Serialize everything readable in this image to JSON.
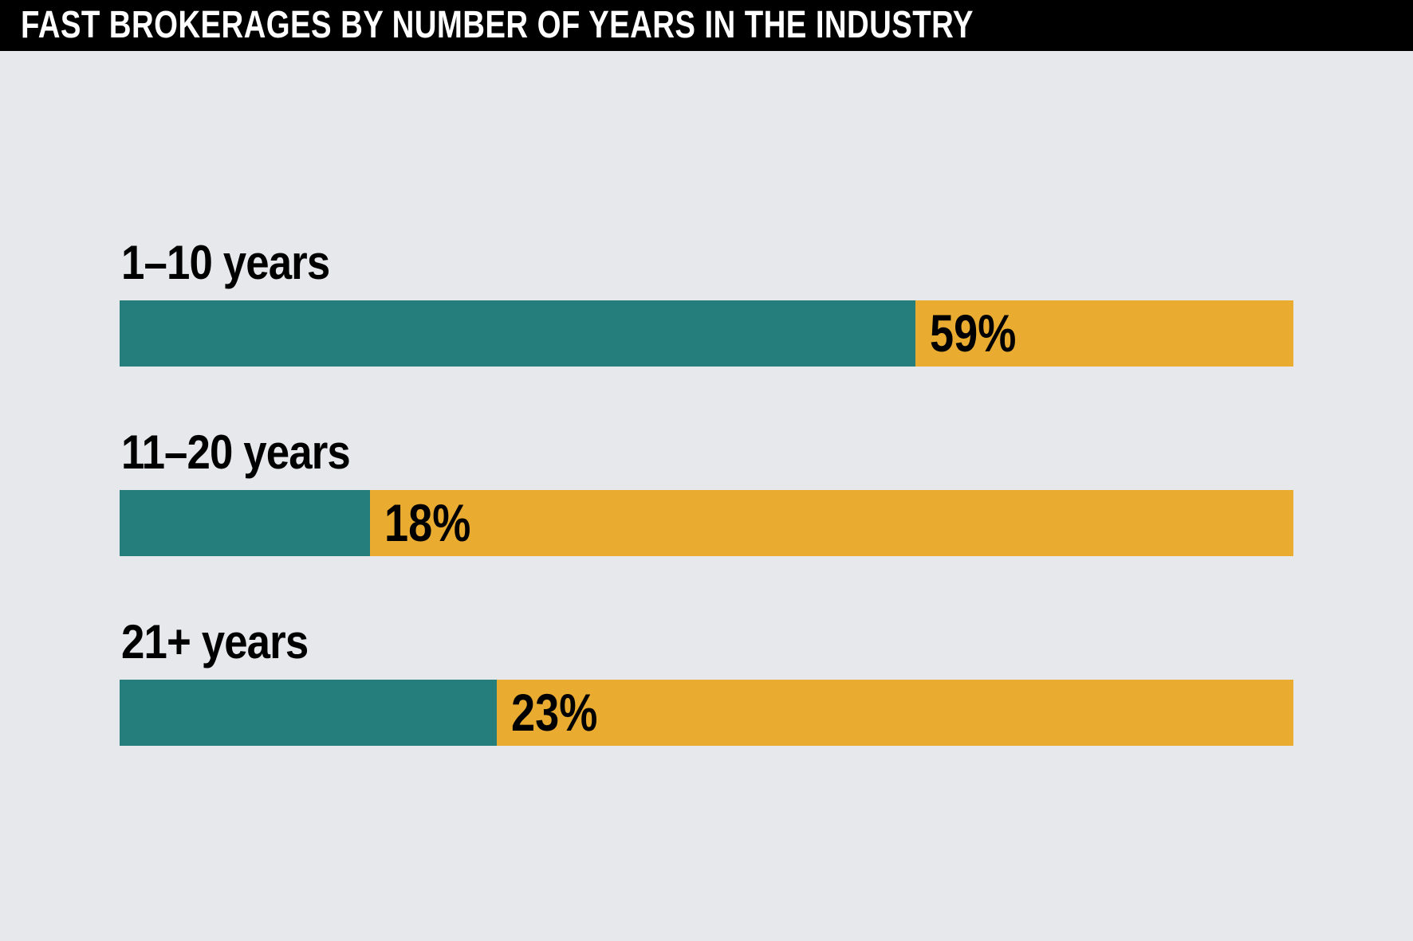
{
  "title": "FAST BROKERAGES BY NUMBER OF YEARS IN THE INDUSTRY",
  "colors": {
    "background": "#E7E8EC",
    "title_bg": "#000000",
    "title_text": "#FFFFFF",
    "label_text": "#000000",
    "teal": "#257E7C",
    "orange": "#E9AC31"
  },
  "chart_data": {
    "type": "bar",
    "orientation": "horizontal",
    "title": "FAST BROKERAGES BY NUMBER OF YEARS IN THE INDUSTRY",
    "categories": [
      "1–10 years",
      "11–20 years",
      "21+ years"
    ],
    "values": [
      59,
      18,
      23
    ],
    "value_labels": [
      "59%",
      "18%",
      "23%"
    ],
    "value_unit": "%",
    "series_colors": {
      "filled": "#257E7C",
      "remainder": "#E9AC31"
    },
    "fill_ratios_rendered": [
      0.678,
      0.213,
      0.321
    ],
    "grid": false,
    "legend": false,
    "value_label_position": "inside-remainder-left"
  }
}
